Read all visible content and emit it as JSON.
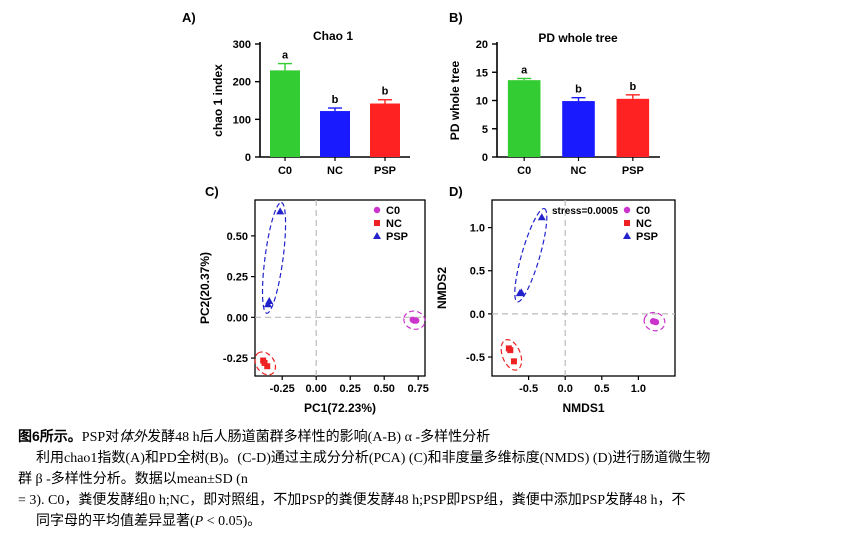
{
  "chart_data": [
    {
      "panel": "A)",
      "type": "bar",
      "title": "Chao 1",
      "ylabel": "chao 1 index",
      "xlabel": "",
      "categories": [
        "C0",
        "NC",
        "PSP"
      ],
      "values": [
        230,
        122,
        142
      ],
      "errors": [
        18,
        8,
        10
      ],
      "letters": [
        "a",
        "b",
        "b"
      ],
      "colors": [
        "#33cc33",
        "#1a1aff",
        "#ff2222"
      ],
      "ylim": [
        0,
        300
      ],
      "yticks": [
        "0",
        "100",
        "200",
        "300"
      ]
    },
    {
      "panel": "B)",
      "type": "bar",
      "title": "PD whole tree",
      "ylabel": "PD whole tree",
      "xlabel": "",
      "categories": [
        "C0",
        "NC",
        "PSP"
      ],
      "values": [
        13.6,
        9.9,
        10.3
      ],
      "errors": [
        0.3,
        0.6,
        0.7
      ],
      "letters": [
        "a",
        "b",
        "b"
      ],
      "colors": [
        "#33cc33",
        "#1a1aff",
        "#ff2222"
      ],
      "ylim": [
        0,
        20
      ],
      "yticks": [
        "0",
        "5",
        "10",
        "15",
        "20"
      ]
    },
    {
      "panel": "C)",
      "type": "scatter",
      "xlabel": "PC1(72.23%)",
      "ylabel": "PC2(20.37%)",
      "xlim": [
        -0.45,
        0.8
      ],
      "ylim": [
        -0.36,
        0.72
      ],
      "xticks": [
        "-0.25",
        "0.00",
        "0.25",
        "0.50",
        "0.75"
      ],
      "yticks": [
        "-0.25",
        "0.00",
        "0.25",
        "0.50"
      ],
      "series": [
        {
          "name": "C0",
          "color": "#cc33cc",
          "marker": "circle",
          "points": [
            [
              0.71,
              -0.015
            ],
            [
              0.72,
              -0.02
            ],
            [
              0.735,
              -0.02
            ]
          ]
        },
        {
          "name": "NC",
          "color": "#ee2222",
          "marker": "square",
          "points": [
            [
              -0.39,
              -0.265
            ],
            [
              -0.38,
              -0.28
            ],
            [
              -0.36,
              -0.3
            ]
          ]
        },
        {
          "name": "PSP",
          "color": "#2222cc",
          "marker": "triangle",
          "points": [
            [
              -0.265,
              0.65
            ],
            [
              -0.345,
              0.1
            ],
            [
              -0.355,
              0.08
            ]
          ]
        }
      ]
    },
    {
      "panel": "D)",
      "type": "scatter",
      "xlabel": "NMDS1",
      "ylabel": "NMDS2",
      "annotation": "stress=0.0005",
      "xlim": [
        -1.0,
        1.5
      ],
      "ylim": [
        -0.72,
        1.32
      ],
      "xticks": [
        "-0.5",
        "0.0",
        "0.5",
        "1.0"
      ],
      "yticks": [
        "-0.5",
        "0.0",
        "0.5",
        "1.0"
      ],
      "series": [
        {
          "name": "C0",
          "color": "#cc33cc",
          "marker": "circle",
          "points": [
            [
              1.2,
              -0.085
            ],
            [
              1.22,
              -0.09
            ],
            [
              1.24,
              -0.095
            ]
          ]
        },
        {
          "name": "NC",
          "color": "#ee2222",
          "marker": "square",
          "points": [
            [
              -0.77,
              -0.4
            ],
            [
              -0.75,
              -0.42
            ],
            [
              -0.7,
              -0.55
            ]
          ]
        },
        {
          "name": "PSP",
          "color": "#2222cc",
          "marker": "triangle",
          "points": [
            [
              -0.32,
              1.12
            ],
            [
              -0.6,
              0.25
            ],
            [
              -0.62,
              0.24
            ]
          ]
        }
      ]
    }
  ],
  "caption": {
    "label": "图6所示。",
    "line1_main": "PSP对",
    "line1_italic": "体外",
    "line1_rest": "发酵48 h后人肠道菌群多样性的影响(A-B) α -多样性分析",
    "line2": "利用chao1指数(A)和PD全树(B)。(C-D)通过主成分分析(PCA) (C)和非度量多维标度(NMDS) (D)进行肠道微生物",
    "line3": "群 β -多样性分析。数据以mean±SD (n",
    "line4": "= 3). C0，粪便发酵组0 h;NC，即对照组，不加PSP的粪便发酵48 h;PSP即PSP组，粪便中添加PSP发酵48 h，不",
    "line5_main": "同字母的平均值差异显著(",
    "line5_italic": "P",
    "line5_rest": " < 0.05)。"
  }
}
